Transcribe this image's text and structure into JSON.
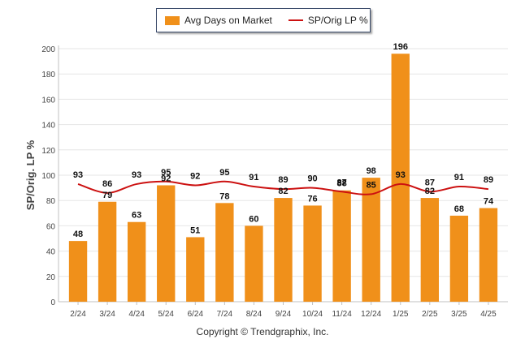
{
  "legend": {
    "bar_label": "Avg Days on Market",
    "line_label": "SP/Orig LP %"
  },
  "footer": {
    "copyright": "Copyright © Trendgraphix, Inc."
  },
  "colors": {
    "bar": "#f0901a",
    "line": "#cc1111",
    "grid": "#e6e6e6",
    "axis": "#c0c0c0"
  },
  "chart_data": {
    "type": "bar",
    "title": "",
    "xlabel": "",
    "ylabel": "SP/Orig. LP %",
    "ylim": [
      0,
      200
    ],
    "yticks": [
      0,
      20,
      40,
      60,
      80,
      100,
      120,
      140,
      160,
      180,
      200
    ],
    "grid": true,
    "legend_position": "top-center",
    "categories": [
      "2/24",
      "3/24",
      "4/24",
      "5/24",
      "6/24",
      "7/24",
      "8/24",
      "9/24",
      "10/24",
      "11/24",
      "12/24",
      "1/25",
      "2/25",
      "3/25",
      "4/25"
    ],
    "series": [
      {
        "name": "Avg Days on Market",
        "type": "bar",
        "values": [
          48,
          79,
          63,
          92,
          51,
          78,
          60,
          82,
          76,
          88,
          98,
          196,
          82,
          68,
          74
        ]
      },
      {
        "name": "SP/Orig LP %",
        "type": "line",
        "values": [
          93,
          86,
          93,
          95,
          92,
          95,
          91,
          89,
          90,
          87,
          85,
          93,
          87,
          91,
          89
        ]
      }
    ]
  }
}
